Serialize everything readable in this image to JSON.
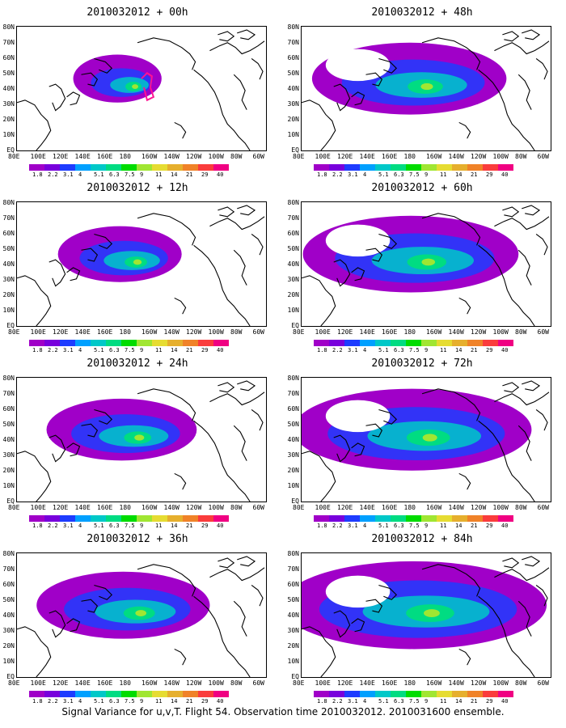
{
  "panels": [
    {
      "title": "2010032012 + 00h",
      "extent": 0.0
    },
    {
      "title": "2010032012 + 48h",
      "extent": 0.6
    },
    {
      "title": "2010032012 + 12h",
      "extent": 0.2
    },
    {
      "title": "2010032012 + 60h",
      "extent": 0.72
    },
    {
      "title": "2010032012 + 24h",
      "extent": 0.35
    },
    {
      "title": "2010032012 + 72h",
      "extent": 0.85
    },
    {
      "title": "2010032012 + 36h",
      "extent": 0.48
    },
    {
      "title": "2010032012 + 84h",
      "extent": 1.0
    }
  ],
  "lat_labels": [
    "80N",
    "70N",
    "60N",
    "50N",
    "40N",
    "30N",
    "20N",
    "10N",
    "EQ"
  ],
  "lon_labels": [
    "80E",
    "100E",
    "120E",
    "140E",
    "160E",
    "180",
    "160W",
    "140W",
    "120W",
    "100W",
    "80W",
    "60W"
  ],
  "colorbar": {
    "labels": [
      "1.8",
      "2.2",
      "3.1",
      "4",
      "5.1",
      "6.3",
      "7.5",
      "9",
      "11",
      "14",
      "21",
      "29",
      "40"
    ],
    "colors": [
      "#a000c8",
      "#7800dc",
      "#1e3cff",
      "#00a0ff",
      "#00c8c8",
      "#00dc82",
      "#00dc00",
      "#a0e632",
      "#e6dc32",
      "#e6af2d",
      "#f08228",
      "#fa3c3c",
      "#f00082"
    ]
  },
  "map_colors": {
    "ocean": "#ffffff",
    "land_line": "#000000",
    "field_low": "#a000c8",
    "field_mid": "#1e3cff",
    "field_hi": "#00dc82",
    "field_peak": "#a0e632",
    "track": "#ff1493"
  },
  "caption": "Signal Variance for u,v,T. Flight 54. Observation time 2010032012. 2010031600 ensemble."
}
